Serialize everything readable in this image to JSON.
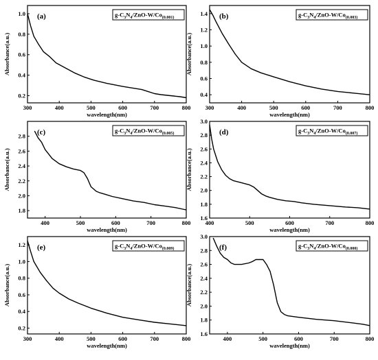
{
  "chart_data": [
    {
      "type": "line",
      "panel_label": "(a)",
      "legend": {
        "prefix": "g-C",
        "sub1": "3",
        "mid1": "N",
        "sub2": "4",
        "rest": "/ZnO-W/Co",
        "ratio": "(0.001)"
      },
      "xlabel": "wavelength(nm)",
      "ylabel": "Absorbance(a.u.)",
      "xlim": [
        300,
        800
      ],
      "ylim": [
        0.13,
        1.08
      ],
      "xticks": [
        300,
        400,
        500,
        600,
        700,
        800
      ],
      "yticks": [
        0.2,
        0.4,
        0.6,
        0.8,
        1.0
      ],
      "ytick_labels": [
        "0.2",
        "0.4",
        "0.6",
        "0.8",
        "1.0"
      ],
      "x": [
        300,
        310,
        320,
        335,
        350,
        370,
        390,
        420,
        450,
        480,
        510,
        550,
        600,
        640,
        660,
        680,
        700,
        720,
        750,
        780,
        800
      ],
      "y": [
        1.0,
        0.88,
        0.78,
        0.7,
        0.63,
        0.58,
        0.52,
        0.47,
        0.42,
        0.38,
        0.35,
        0.32,
        0.29,
        0.27,
        0.26,
        0.24,
        0.22,
        0.21,
        0.2,
        0.19,
        0.18
      ]
    },
    {
      "type": "line",
      "panel_label": "(b)",
      "legend": {
        "prefix": "g-C",
        "sub1": "3",
        "mid1": "N",
        "sub2": "4",
        "rest": "/ZnO-W/Co",
        "ratio": "(0.003)"
      },
      "xlabel": "wavelength(nm)",
      "ylabel": "Absorbance(a.u.)",
      "xlim": [
        300,
        800
      ],
      "ylim": [
        0.3,
        1.5
      ],
      "xticks": [
        300,
        400,
        500,
        600,
        700,
        800
      ],
      "yticks": [
        0.4,
        0.6,
        0.8,
        1.0,
        1.2,
        1.4
      ],
      "ytick_labels": [
        "0.4",
        "0.6",
        "0.8",
        "1.0",
        "1.2",
        "1.4"
      ],
      "x": [
        300,
        310,
        320,
        340,
        360,
        380,
        400,
        430,
        460,
        500,
        550,
        600,
        650,
        700,
        750,
        800
      ],
      "y": [
        1.45,
        1.38,
        1.3,
        1.15,
        1.02,
        0.9,
        0.8,
        0.72,
        0.67,
        0.62,
        0.56,
        0.51,
        0.47,
        0.44,
        0.42,
        0.4
      ]
    },
    {
      "type": "line",
      "panel_label": "(c)",
      "legend": {
        "prefix": "g-C",
        "sub1": "3",
        "mid1": "N",
        "sub2": "4",
        "rest": "/ZnO-W/Co",
        "ratio": "(0.005)"
      },
      "xlabel": "wavelength(nm)",
      "ylabel": "Absorbance(a.u.)",
      "xlim": [
        350,
        800
      ],
      "ylim": [
        1.7,
        3.0
      ],
      "xticks": [
        400,
        500,
        600,
        700,
        800
      ],
      "yticks": [
        1.8,
        2.0,
        2.2,
        2.4,
        2.6,
        2.8
      ],
      "ytick_labels": [
        "1.8",
        "2.0",
        "2.2",
        "2.4",
        "2.6",
        "2.8"
      ],
      "x": [
        370,
        380,
        390,
        400,
        410,
        420,
        440,
        460,
        480,
        500,
        510,
        520,
        530,
        545,
        555,
        570,
        590,
        620,
        650,
        680,
        710,
        740,
        770,
        790,
        800
      ],
      "y": [
        2.87,
        2.78,
        2.72,
        2.62,
        2.56,
        2.5,
        2.43,
        2.39,
        2.36,
        2.34,
        2.31,
        2.23,
        2.12,
        2.06,
        2.04,
        2.02,
        1.99,
        1.96,
        1.93,
        1.91,
        1.88,
        1.86,
        1.84,
        1.82,
        1.81
      ]
    },
    {
      "type": "line",
      "panel_label": "(d)",
      "legend": {
        "prefix": "g-C",
        "sub1": "3",
        "mid1": "N",
        "sub2": "4",
        "rest": "/ZnO-W/Co",
        "ratio": "(0.007)"
      },
      "xlabel": "wavelength(nm)",
      "ylabel": "Absorbance(a.u.)",
      "xlim": [
        400,
        800
      ],
      "ylim": [
        1.6,
        3.0
      ],
      "xticks": [
        400,
        500,
        600,
        700,
        800
      ],
      "yticks": [
        1.6,
        1.8,
        2.0,
        2.2,
        2.4,
        2.6,
        2.8,
        3.0
      ],
      "ytick_labels": [
        "1.6",
        "1.8",
        "2.0",
        "2.2",
        "2.4",
        "2.6",
        "2.8",
        "3.0"
      ],
      "x": [
        400,
        405,
        410,
        420,
        430,
        440,
        450,
        460,
        480,
        500,
        510,
        520,
        530,
        540,
        550,
        570,
        590,
        610,
        630,
        660,
        700,
        740,
        770,
        800
      ],
      "y": [
        2.95,
        2.75,
        2.6,
        2.42,
        2.3,
        2.22,
        2.17,
        2.14,
        2.11,
        2.08,
        2.05,
        2.0,
        1.95,
        1.92,
        1.9,
        1.87,
        1.85,
        1.84,
        1.82,
        1.8,
        1.78,
        1.76,
        1.75,
        1.73
      ]
    },
    {
      "type": "line",
      "panel_label": "(e)",
      "legend": {
        "prefix": "g-C",
        "sub1": "3",
        "mid1": "N",
        "sub2": "4",
        "rest": "/ZnO-W/Co",
        "ratio": "(0.009)"
      },
      "xlabel": "wavelength(nm)",
      "ylabel": "Absorbance(a.u.)",
      "xlim": [
        300,
        800
      ],
      "ylim": [
        0.13,
        1.3
      ],
      "xticks": [
        300,
        400,
        500,
        600,
        700,
        800
      ],
      "yticks": [
        0.2,
        0.4,
        0.6,
        0.8,
        1.0,
        1.2
      ],
      "ytick_labels": [
        "0.2",
        "0.4",
        "0.6",
        "0.8",
        "1.0",
        "1.2"
      ],
      "x": [
        300,
        310,
        320,
        340,
        360,
        380,
        400,
        430,
        460,
        500,
        550,
        600,
        650,
        700,
        750,
        800
      ],
      "y": [
        1.25,
        1.12,
        1.0,
        0.87,
        0.77,
        0.68,
        0.62,
        0.55,
        0.5,
        0.44,
        0.38,
        0.33,
        0.3,
        0.27,
        0.25,
        0.23
      ]
    },
    {
      "type": "line",
      "panel_label": "(f)",
      "legend": {
        "prefix": "g-C",
        "sub1": "3",
        "mid1": "N",
        "sub2": "4",
        "rest": "/ZnO-W/Co",
        "ratio": "(0.000)"
      },
      "xlabel": "wavelength(nm)",
      "ylabel": "Absorbance(a.u.)",
      "xlim": [
        350,
        800
      ],
      "ylim": [
        1.6,
        3.0
      ],
      "xticks": [
        400,
        500,
        600,
        700,
        800
      ],
      "yticks": [
        1.6,
        1.8,
        2.0,
        2.2,
        2.4,
        2.6,
        2.8,
        3.0
      ],
      "ytick_labels": [
        "1.6",
        "1.8",
        "2.0",
        "2.2",
        "2.4",
        "2.6",
        "2.8",
        "3.0"
      ],
      "x": [
        360,
        370,
        380,
        390,
        400,
        410,
        420,
        440,
        460,
        470,
        480,
        500,
        510,
        520,
        530,
        540,
        550,
        560,
        570,
        600,
        650,
        700,
        750,
        780,
        800
      ],
      "y": [
        2.98,
        2.86,
        2.76,
        2.7,
        2.67,
        2.62,
        2.6,
        2.6,
        2.62,
        2.64,
        2.67,
        2.67,
        2.6,
        2.5,
        2.3,
        2.05,
        1.92,
        1.88,
        1.86,
        1.84,
        1.81,
        1.79,
        1.76,
        1.74,
        1.72
      ]
    }
  ]
}
